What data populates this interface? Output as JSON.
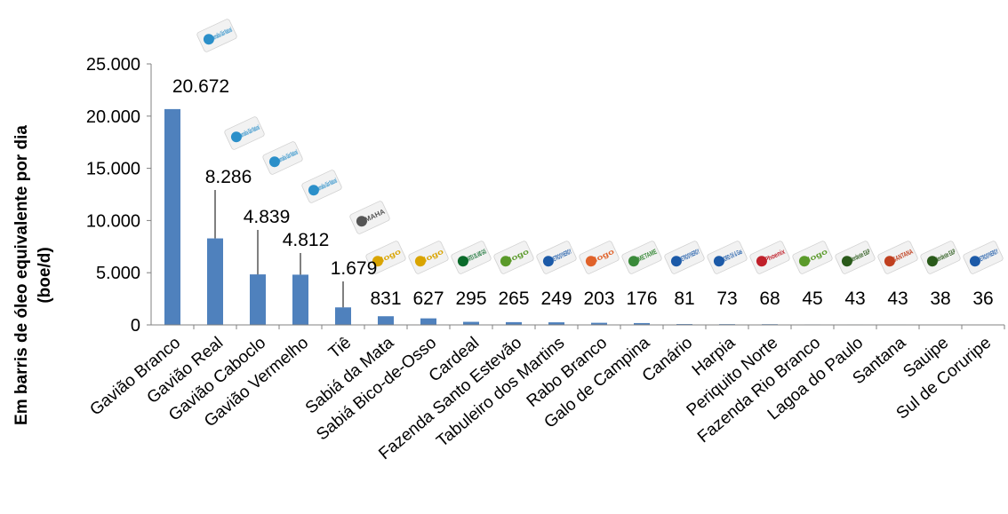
{
  "chart_data": {
    "type": "bar",
    "title": "",
    "xlabel": "",
    "ylabel": "Em barris de óleo equivalente por dia (boe/d)",
    "ylim": [
      0,
      25000
    ],
    "yticks": [
      "0",
      "5.000",
      "10.000",
      "15.000",
      "20.000",
      "25.000"
    ],
    "grid": false,
    "categories": [
      "Gavião Branco",
      "Gavião Real",
      "Gavião Caboclo",
      "Gavião Vermelho",
      "Tiê",
      "Sabiá da Mata",
      "Sabiá Bico-de-Osso",
      "Cardeal",
      "Fazenda Santo Estevão",
      "Tabuleiro dos Martins",
      "Rabo Branco",
      "Galo de Campina",
      "Canário",
      "Harpia",
      "Periquito Norte",
      "Fazenda Rio Branco",
      "Lagoa do Paulo",
      "Santana",
      "Sauipe",
      "Sul de Coruripe"
    ],
    "values": [
      20672,
      8286,
      4839,
      4812,
      1679,
      831,
      627,
      295,
      265,
      249,
      203,
      176,
      81,
      73,
      68,
      45,
      43,
      43,
      38,
      36
    ],
    "data_labels": [
      "20.672",
      "8.286",
      "4.839",
      "4.812",
      "1.679",
      "831",
      "627",
      "295",
      "265",
      "249",
      "203",
      "176",
      "81",
      "73",
      "68",
      "45",
      "43",
      "43",
      "38",
      "36"
    ],
    "bar_color": "#4f81bd",
    "operator_logos": [
      "Parnaíba Gás Natural",
      "Parnaíba Gás Natural",
      "Parnaíba Gás Natural",
      "Parnaíba Gás Natural",
      "MAHA",
      "logo",
      "logo",
      "PARTEX OIL AND GAS",
      "logo",
      "PETROSYNERGY",
      "logo",
      "IMETAME",
      "PETROSYNERGY",
      "NORD Oil & Gas",
      "Phoenix",
      "logo",
      "Nordeste E&P",
      "SANTANA",
      "Nordeste E&P",
      "PETROSYNERGY"
    ]
  }
}
